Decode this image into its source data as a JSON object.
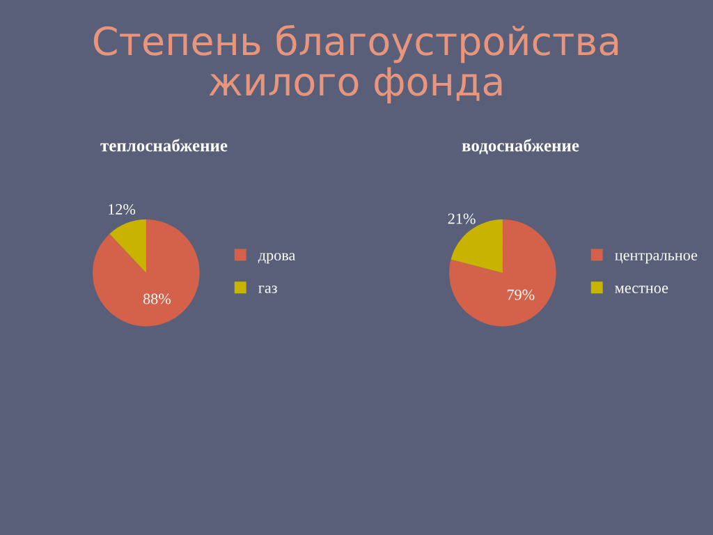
{
  "chart_data": [
    {
      "type": "pie",
      "title": "Степень благоустройства\nжилого фонда",
      "subtitle": "теплоснабжение",
      "categories": [
        "дрова",
        "газ"
      ],
      "values": [
        88,
        12
      ],
      "colors": [
        "#d4614a",
        "#c8b400"
      ],
      "value_labels": [
        "88%",
        "12%"
      ],
      "legend": "right"
    },
    {
      "type": "pie",
      "subtitle": "водоснабжение",
      "categories": [
        "центральное",
        "местное"
      ],
      "values": [
        79,
        21
      ],
      "colors": [
        "#d4614a",
        "#c8b400"
      ],
      "value_labels": [
        "79%",
        "21%"
      ],
      "legend": "right"
    }
  ]
}
